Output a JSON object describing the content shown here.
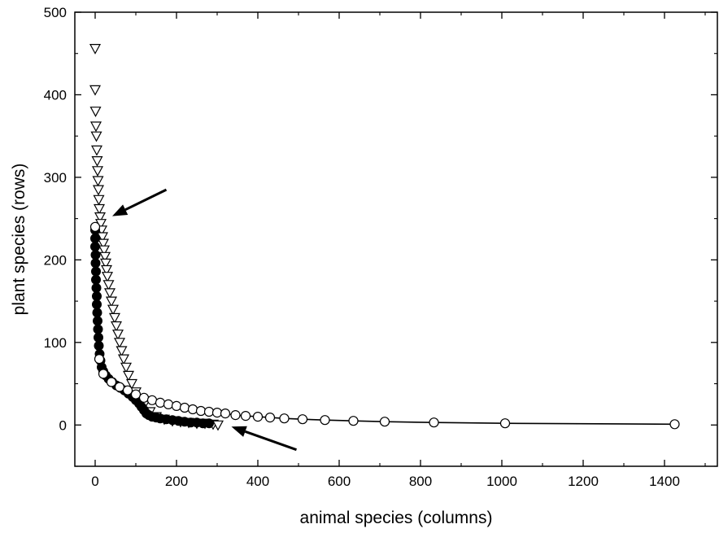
{
  "chart_data": {
    "type": "scatter",
    "xlabel": "animal species (columns)",
    "ylabel": "plant species (rows)",
    "xlim": [
      -50,
      1530
    ],
    "ylim": [
      -50,
      500
    ],
    "xticks": [
      "0",
      "200",
      "400",
      "600",
      "800",
      "1000",
      "1200",
      "1400"
    ],
    "xtick_values": [
      0,
      200,
      400,
      600,
      800,
      1000,
      1200,
      1400
    ],
    "yticks": [
      "0",
      "100",
      "200",
      "300",
      "400",
      "500"
    ],
    "ytick_values": [
      0,
      100,
      200,
      300,
      400,
      500
    ],
    "grid": false,
    "legend": "none",
    "series": [
      {
        "marker": "triangle-down-open",
        "color": "#000000",
        "points": [
          [
            0,
            456
          ],
          [
            0,
            406
          ],
          [
            1,
            380
          ],
          [
            2,
            362
          ],
          [
            3,
            350
          ],
          [
            4,
            333
          ],
          [
            5,
            320
          ],
          [
            6,
            308
          ],
          [
            7,
            296
          ],
          [
            8,
            285
          ],
          [
            9,
            273
          ],
          [
            10,
            262
          ],
          [
            12,
            252
          ],
          [
            14,
            244
          ],
          [
            16,
            236
          ],
          [
            18,
            228
          ],
          [
            20,
            220
          ],
          [
            22,
            212
          ],
          [
            24,
            204
          ],
          [
            26,
            196
          ],
          [
            28,
            188
          ],
          [
            30,
            180
          ],
          [
            33,
            170
          ],
          [
            36,
            160
          ],
          [
            40,
            150
          ],
          [
            44,
            140
          ],
          [
            48,
            130
          ],
          [
            52,
            120
          ],
          [
            56,
            110
          ],
          [
            60,
            100
          ],
          [
            65,
            90
          ],
          [
            70,
            80
          ],
          [
            76,
            70
          ],
          [
            82,
            60
          ],
          [
            90,
            50
          ],
          [
            100,
            40
          ],
          [
            110,
            32
          ],
          [
            120,
            24
          ],
          [
            135,
            16
          ],
          [
            150,
            10
          ],
          [
            170,
            7
          ],
          [
            190,
            5
          ],
          [
            210,
            4
          ],
          [
            230,
            3
          ],
          [
            250,
            2
          ],
          [
            270,
            2
          ],
          [
            290,
            1
          ],
          [
            302,
            0
          ]
        ]
      },
      {
        "marker": "circle-filled",
        "color": "#000000",
        "points": [
          [
            0,
            236
          ],
          [
            0,
            226
          ],
          [
            0,
            216
          ],
          [
            1,
            206
          ],
          [
            1,
            196
          ],
          [
            2,
            186
          ],
          [
            2,
            176
          ],
          [
            3,
            166
          ],
          [
            4,
            156
          ],
          [
            4,
            146
          ],
          [
            5,
            136
          ],
          [
            6,
            126
          ],
          [
            7,
            116
          ],
          [
            8,
            106
          ],
          [
            9,
            96
          ],
          [
            11,
            86
          ],
          [
            13,
            78
          ],
          [
            16,
            70
          ],
          [
            20,
            65
          ],
          [
            26,
            60
          ],
          [
            33,
            56
          ],
          [
            42,
            52
          ],
          [
            52,
            48
          ],
          [
            62,
            45
          ],
          [
            72,
            42
          ],
          [
            82,
            38
          ],
          [
            92,
            34
          ],
          [
            100,
            30
          ],
          [
            108,
            26
          ],
          [
            114,
            22
          ],
          [
            120,
            18
          ],
          [
            126,
            14
          ],
          [
            132,
            12
          ],
          [
            140,
            10
          ],
          [
            150,
            9
          ],
          [
            160,
            8
          ],
          [
            175,
            7
          ],
          [
            190,
            6
          ],
          [
            205,
            5
          ],
          [
            220,
            4
          ],
          [
            235,
            3
          ],
          [
            250,
            3
          ],
          [
            265,
            2
          ],
          [
            280,
            2
          ]
        ]
      },
      {
        "marker": "circle-open",
        "color": "#000000",
        "points": [
          [
            0,
            240
          ],
          [
            10,
            80
          ],
          [
            20,
            62
          ],
          [
            40,
            52
          ],
          [
            60,
            46
          ],
          [
            80,
            42
          ],
          [
            100,
            37
          ],
          [
            120,
            33
          ],
          [
            140,
            30
          ],
          [
            160,
            27
          ],
          [
            180,
            25
          ],
          [
            200,
            23
          ],
          [
            220,
            21
          ],
          [
            240,
            19
          ],
          [
            260,
            17
          ],
          [
            280,
            16
          ],
          [
            300,
            15
          ],
          [
            320,
            14
          ],
          [
            345,
            12
          ],
          [
            370,
            11
          ],
          [
            400,
            10
          ],
          [
            430,
            9
          ],
          [
            465,
            8
          ],
          [
            510,
            7
          ],
          [
            565,
            6
          ],
          [
            635,
            5
          ],
          [
            712,
            4
          ],
          [
            833,
            3
          ],
          [
            1008,
            2
          ],
          [
            1425,
            1
          ]
        ]
      }
    ],
    "annotations": [
      {
        "type": "arrow",
        "from": [
          175,
          285
        ],
        "to": [
          42,
          253
        ]
      },
      {
        "type": "arrow",
        "from": [
          495,
          -30
        ],
        "to": [
          335,
          -2
        ]
      }
    ]
  }
}
